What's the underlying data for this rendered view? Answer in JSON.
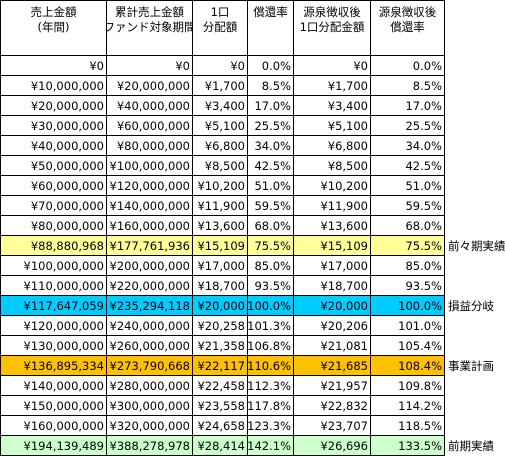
{
  "table": {
    "header": [
      [
        "売上金額",
        "(年間)"
      ],
      [
        "累計売上金額",
        "(ファンド対象期間)"
      ],
      [
        "1口",
        "分配額"
      ],
      [
        "償還率"
      ],
      [
        "源泉徴収後",
        "1口分配金額"
      ],
      [
        "源泉徴収後",
        "償還率"
      ]
    ],
    "rows": [
      {
        "cells": [
          "¥0",
          "¥0",
          "¥0",
          "0.0%",
          "¥0",
          "0.0%"
        ]
      },
      {
        "cells": [
          "¥10,000,000",
          "¥20,000,000",
          "¥1,700",
          "8.5%",
          "¥1,700",
          "8.5%"
        ]
      },
      {
        "cells": [
          "¥20,000,000",
          "¥40,000,000",
          "¥3,400",
          "17.0%",
          "¥3,400",
          "17.0%"
        ]
      },
      {
        "cells": [
          "¥30,000,000",
          "¥60,000,000",
          "¥5,100",
          "25.5%",
          "¥5,100",
          "25.5%"
        ]
      },
      {
        "cells": [
          "¥40,000,000",
          "¥80,000,000",
          "¥6,800",
          "34.0%",
          "¥6,800",
          "34.0%"
        ]
      },
      {
        "cells": [
          "¥50,000,000",
          "¥100,000,000",
          "¥8,500",
          "42.5%",
          "¥8,500",
          "42.5%"
        ]
      },
      {
        "cells": [
          "¥60,000,000",
          "¥120,000,000",
          "¥10,200",
          "51.0%",
          "¥10,200",
          "51.0%"
        ]
      },
      {
        "cells": [
          "¥70,000,000",
          "¥140,000,000",
          "¥11,900",
          "59.5%",
          "¥11,900",
          "59.5%"
        ]
      },
      {
        "cells": [
          "¥80,000,000",
          "¥160,000,000",
          "¥13,600",
          "68.0%",
          "¥13,600",
          "68.0%"
        ]
      },
      {
        "cells": [
          "¥88,880,968",
          "¥177,761,936",
          "¥15,109",
          "75.5%",
          "¥15,109",
          "75.5%"
        ],
        "note": "前々期実績",
        "color": "#ffff99"
      },
      {
        "cells": [
          "¥100,000,000",
          "¥200,000,000",
          "¥17,000",
          "85.0%",
          "¥17,000",
          "85.0%"
        ]
      },
      {
        "cells": [
          "¥110,000,000",
          "¥220,000,000",
          "¥18,700",
          "93.5%",
          "¥18,700",
          "93.5%"
        ]
      },
      {
        "cells": [
          "¥117,647,059",
          "¥235,294,118",
          "¥20,000",
          "100.0%",
          "¥20,000",
          "100.0%"
        ],
        "note": "損益分岐",
        "color": "#00ccff"
      },
      {
        "cells": [
          "¥120,000,000",
          "¥240,000,000",
          "¥20,258",
          "101.3%",
          "¥20,206",
          "101.0%"
        ]
      },
      {
        "cells": [
          "¥130,000,000",
          "¥260,000,000",
          "¥21,358",
          "106.8%",
          "¥21,081",
          "105.4%"
        ]
      },
      {
        "cells": [
          "¥136,895,334",
          "¥273,790,668",
          "¥22,117",
          "110.6%",
          "¥21,685",
          "108.4%"
        ],
        "note": "事業計画",
        "color": "#ffc000"
      },
      {
        "cells": [
          "¥140,000,000",
          "¥280,000,000",
          "¥22,458",
          "112.3%",
          "¥21,957",
          "109.8%"
        ]
      },
      {
        "cells": [
          "¥150,000,000",
          "¥300,000,000",
          "¥23,558",
          "117.8%",
          "¥22,832",
          "114.2%"
        ]
      },
      {
        "cells": [
          "¥160,000,000",
          "¥320,000,000",
          "¥24,658",
          "123.3%",
          "¥23,707",
          "118.5%"
        ]
      },
      {
        "cells": [
          "¥194,139,489",
          "¥388,278,978",
          "¥28,414",
          "142.1%",
          "¥26,696",
          "133.5%"
        ],
        "note": "前期実績",
        "color": "#ccffcc"
      }
    ]
  }
}
